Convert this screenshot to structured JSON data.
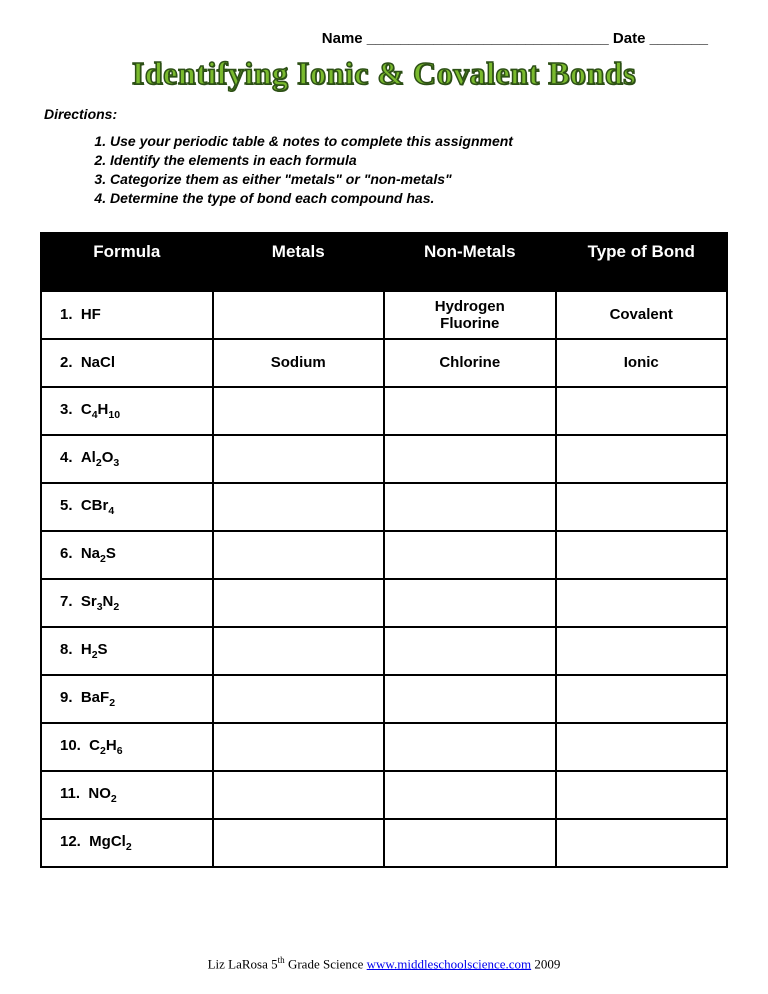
{
  "header": {
    "name_label": "Name",
    "name_blank": "_____________________________",
    "date_label": "Date",
    "date_blank": "_______"
  },
  "title": "Identifying Ionic & Covalent Bonds",
  "directions_label": "Directions:",
  "directions": [
    "Use your periodic table & notes to complete this assignment",
    "Identify the elements in each formula",
    "Categorize them as either \"metals\" or \"non-metals\"",
    "Determine the type of bond each compound has."
  ],
  "table": {
    "columns": [
      "Formula",
      "Metals",
      "Non-Metals",
      "Type of Bond"
    ],
    "header_bg": "#000000",
    "header_fg": "#ffffff",
    "border_color": "#000000",
    "rows": [
      {
        "num": "1.",
        "formula_html": "HF",
        "metals": "",
        "nonmetals": "Hydrogen Fluorine",
        "bond": "Covalent"
      },
      {
        "num": "2.",
        "formula_html": "NaCl",
        "metals": "Sodium",
        "nonmetals": "Chlorine",
        "bond": "Ionic"
      },
      {
        "num": "3.",
        "formula_html": "C<sub>4</sub>H<sub>10</sub>",
        "metals": "",
        "nonmetals": "",
        "bond": ""
      },
      {
        "num": "4.",
        "formula_html": "Al<sub>2</sub>O<sub>3</sub>",
        "metals": "",
        "nonmetals": "",
        "bond": ""
      },
      {
        "num": "5.",
        "formula_html": "CBr<sub>4</sub>",
        "metals": "",
        "nonmetals": "",
        "bond": ""
      },
      {
        "num": "6.",
        "formula_html": "Na<sub>2</sub>S",
        "metals": "",
        "nonmetals": "",
        "bond": ""
      },
      {
        "num": "7.",
        "formula_html": "Sr<sub>3</sub>N<sub>2</sub>",
        "metals": "",
        "nonmetals": "",
        "bond": ""
      },
      {
        "num": "8.",
        "formula_html": "H<sub>2</sub>S",
        "metals": "",
        "nonmetals": "",
        "bond": ""
      },
      {
        "num": "9.",
        "formula_html": "BaF<sub>2</sub>",
        "metals": "",
        "nonmetals": "",
        "bond": ""
      },
      {
        "num": "10.",
        "formula_html": "C<sub>2</sub>H<sub>6</sub>",
        "metals": "",
        "nonmetals": "",
        "bond": ""
      },
      {
        "num": "11.",
        "formula_html": "NO<sub>2</sub>",
        "metals": "",
        "nonmetals": "",
        "bond": ""
      },
      {
        "num": "12.",
        "formula_html": "MgCl<sub>2</sub>",
        "metals": "",
        "nonmetals": "",
        "bond": ""
      }
    ]
  },
  "footer": {
    "author": "Liz LaRosa 5",
    "author_suffix": "th",
    "author_tail": " Grade Science ",
    "link_text": "www.middleschoolscience.com",
    "year": " 2009"
  },
  "colors": {
    "title_fill": "#7aba2e",
    "title_stroke": "#2d5016",
    "background": "#ffffff",
    "text": "#000000",
    "link": "#0000ee"
  }
}
